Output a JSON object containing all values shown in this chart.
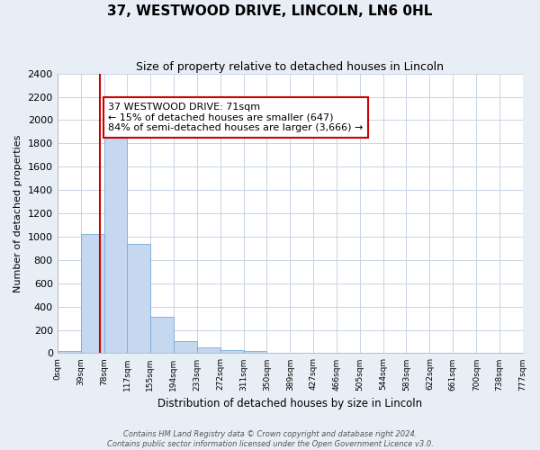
{
  "title": "37, WESTWOOD DRIVE, LINCOLN, LN6 0HL",
  "subtitle": "Size of property relative to detached houses in Lincoln",
  "xlabel": "Distribution of detached houses by size in Lincoln",
  "ylabel": "Number of detached properties",
  "bin_edges": [
    0,
    39,
    78,
    117,
    155,
    194,
    233,
    272,
    311,
    350,
    389,
    427,
    466,
    505,
    544,
    583,
    622,
    661,
    700,
    738,
    777
  ],
  "bin_counts": [
    20,
    1025,
    1900,
    935,
    315,
    105,
    50,
    30,
    20,
    0,
    0,
    0,
    0,
    0,
    0,
    0,
    0,
    0,
    0,
    0
  ],
  "property_size": 71,
  "bar_color": "#c5d8f0",
  "bar_edge_color": "#7aaad4",
  "vline_color": "#cc0000",
  "vline_x": 71,
  "ylim": [
    0,
    2400
  ],
  "yticks": [
    0,
    200,
    400,
    600,
    800,
    1000,
    1200,
    1400,
    1600,
    1800,
    2000,
    2200,
    2400
  ],
  "annotation_text": "37 WESTWOOD DRIVE: 71sqm\n← 15% of detached houses are smaller (647)\n84% of semi-detached houses are larger (3,666) →",
  "annotation_box_color": "#ffffff",
  "annotation_box_edge_color": "#cc0000",
  "footer_line1": "Contains HM Land Registry data © Crown copyright and database right 2024.",
  "footer_line2": "Contains public sector information licensed under the Open Government Licence v3.0.",
  "background_color": "#e8eef5",
  "plot_background_color": "#ffffff",
  "grid_color": "#c8d4e4"
}
